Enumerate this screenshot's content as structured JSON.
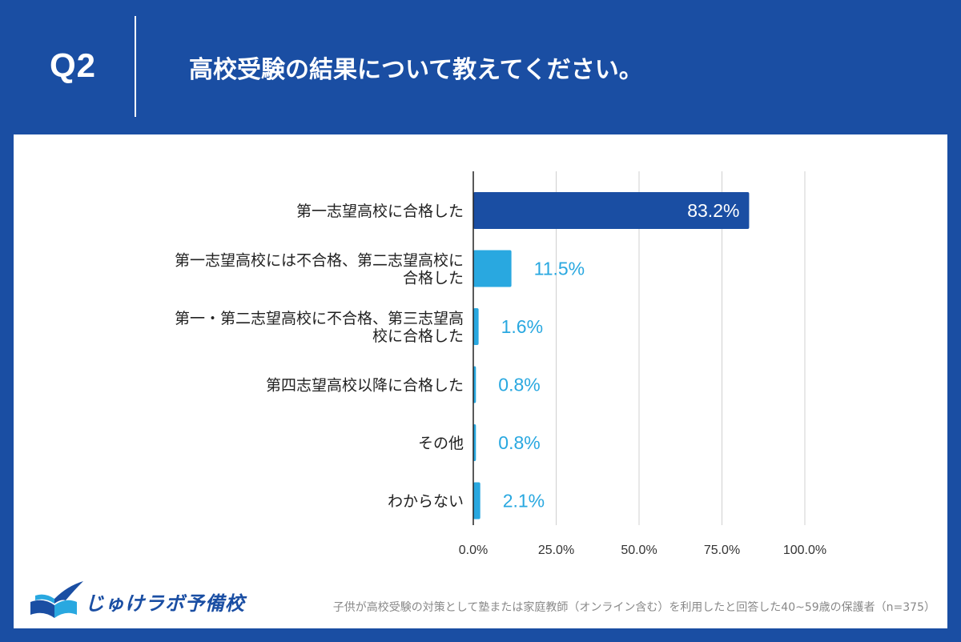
{
  "header": {
    "question_number": "Q2",
    "question_text": "高校受験の結果について教えてください。"
  },
  "chart_data": {
    "type": "bar",
    "orientation": "horizontal",
    "categories": [
      [
        "第一志望高校に合格した"
      ],
      [
        "第一志望高校には不合格、第二志望高校に",
        "合格した"
      ],
      [
        "第一・第二志望高校に不合格、第三志望高",
        "校に合格した"
      ],
      [
        "第四志望高校以降に合格した"
      ],
      [
        "その他"
      ],
      [
        "わからない"
      ]
    ],
    "values": [
      83.2,
      11.5,
      1.6,
      0.8,
      0.8,
      2.1
    ],
    "value_labels": [
      "83.2%",
      "11.5%",
      "1.6%",
      "0.8%",
      "0.8%",
      "2.1%"
    ],
    "xlim": [
      0,
      100
    ],
    "xticks": [
      "0.0%",
      "25.0%",
      "50.0%",
      "75.0%",
      "100.0%"
    ],
    "grid": true,
    "colors": {
      "primary": "#1a4ea3",
      "secondary": "#29a8e0"
    }
  },
  "logo": {
    "text": "じゅけラボ予備校"
  },
  "footnote": "子供が高校受験の対策として塾または家庭教師（オンライン含む）を利用したと回答した40~59歳の保護者（n=375）"
}
